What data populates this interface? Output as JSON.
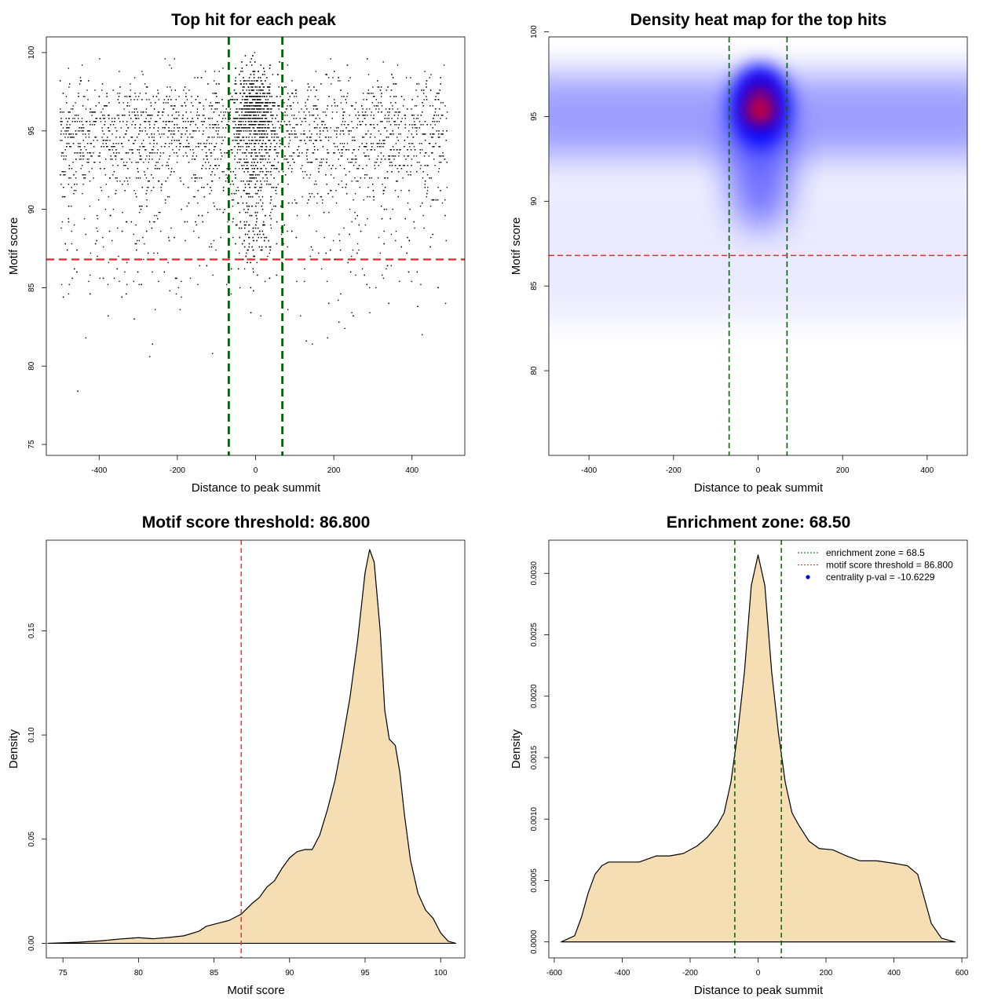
{
  "colors": {
    "enrichment": "#006400",
    "threshold": "#e03030",
    "fill": "#f5deb3",
    "point": "#000000",
    "heat_low": "#ffffff",
    "heat_mid": "#0000ff",
    "heat_high": "#ff0000"
  },
  "chart_data": [
    {
      "type": "scatter",
      "title": "Top hit for each peak",
      "xlabel": "Distance to peak summit",
      "ylabel": "Motif score",
      "xlim": [
        -535,
        535
      ],
      "ylim": [
        74.3,
        101.0
      ],
      "xticks": [
        -400,
        -200,
        0,
        200,
        400
      ],
      "yticks": [
        75,
        80,
        85,
        90,
        95,
        100
      ],
      "points_description": "about 6000 points spread over x -500..500, concentrated at y 93-97 and near x 0",
      "vlines": [
        -68.5,
        68.5
      ],
      "hline": 86.8
    },
    {
      "type": "heatmap",
      "title": "Density heat map for the top hits",
      "xlabel": "Distance to peak summit",
      "ylabel": "Motif score",
      "xlim": [
        -495,
        495
      ],
      "ylim": [
        75.0,
        99.7
      ],
      "xticks": [
        -400,
        -200,
        0,
        200,
        400
      ],
      "yticks": [
        80,
        85,
        90,
        95,
        100
      ],
      "hotspot": {
        "x": 5,
        "y": 95.3
      },
      "vlines": [
        -68.5,
        68.5
      ],
      "hline": 86.8
    },
    {
      "type": "area",
      "title": "Motif score threshold: 86.800",
      "xlabel": "Motif score",
      "ylabel": "Density",
      "xlim": [
        73.9,
        101.6
      ],
      "ylim": [
        -0.007,
        0.1935
      ],
      "xticks": [
        75,
        80,
        85,
        90,
        95,
        100
      ],
      "yticks": [
        0.0,
        0.05,
        0.1,
        0.15
      ],
      "ytick_labels": [
        "0.00",
        "0.05",
        "0.10",
        "0.15"
      ],
      "x": [
        74.0,
        76.0,
        77.5,
        79.0,
        80.0,
        81.0,
        82.0,
        83.0,
        84.0,
        84.5,
        85.2,
        86.0,
        86.8,
        87.5,
        88.0,
        88.5,
        89.0,
        89.5,
        90.0,
        90.5,
        91.0,
        91.5,
        92.0,
        92.5,
        93.0,
        93.5,
        94.0,
        94.5,
        95.0,
        95.3,
        95.6,
        96.0,
        96.3,
        96.6,
        97.0,
        97.3,
        97.6,
        98.0,
        98.5,
        99.0,
        99.5,
        100.0,
        100.5,
        101.0
      ],
      "y": [
        0.0,
        0.0005,
        0.0012,
        0.0022,
        0.0027,
        0.0022,
        0.0028,
        0.0036,
        0.0058,
        0.0082,
        0.0095,
        0.011,
        0.014,
        0.019,
        0.022,
        0.027,
        0.03,
        0.036,
        0.041,
        0.044,
        0.045,
        0.045,
        0.052,
        0.064,
        0.078,
        0.097,
        0.118,
        0.145,
        0.178,
        0.189,
        0.183,
        0.15,
        0.112,
        0.098,
        0.095,
        0.082,
        0.062,
        0.04,
        0.024,
        0.016,
        0.012,
        0.005,
        0.001,
        0.0
      ],
      "vline": 86.8
    },
    {
      "type": "area",
      "title": "Enrichment zone: 68.50",
      "xlabel": "Distance to peak summit",
      "ylabel": "Density",
      "xlim": [
        -616,
        616
      ],
      "ylim": [
        -0.00013,
        0.00327
      ],
      "xticks": [
        -600,
        -400,
        -200,
        0,
        200,
        400,
        600
      ],
      "yticks": [
        0.0,
        0.0005,
        0.001,
        0.0015,
        0.002,
        0.0025,
        0.003
      ],
      "ytick_labels": [
        "0.0000",
        "0.0005",
        "0.0010",
        "0.0015",
        "0.0020",
        "0.0025",
        "0.0030"
      ],
      "x": [
        -580,
        -540,
        -520,
        -500,
        -480,
        -460,
        -440,
        -400,
        -350,
        -300,
        -260,
        -220,
        -180,
        -150,
        -120,
        -100,
        -80,
        -60,
        -40,
        -20,
        0,
        20,
        40,
        60,
        80,
        100,
        120,
        150,
        180,
        220,
        260,
        300,
        350,
        400,
        440,
        470,
        490,
        510,
        540,
        580
      ],
      "y": [
        0.0,
        5e-05,
        0.0002,
        0.0004,
        0.00055,
        0.00062,
        0.00065,
        0.00065,
        0.00065,
        0.0007,
        0.0007,
        0.00072,
        0.00078,
        0.00085,
        0.00095,
        0.00105,
        0.0013,
        0.0017,
        0.0022,
        0.0029,
        0.00315,
        0.0029,
        0.0022,
        0.0017,
        0.0013,
        0.00105,
        0.00095,
        0.00082,
        0.00076,
        0.00075,
        0.0007,
        0.00066,
        0.00066,
        0.00064,
        0.00062,
        0.00055,
        0.00035,
        0.00015,
        3e-05,
        0.0
      ],
      "vlines": [
        -68.5,
        68.5
      ],
      "legend": {
        "position": "top-right",
        "entries": [
          {
            "label": "enrichment zone = 68.5",
            "color": "#006400",
            "kind": "line-dotted"
          },
          {
            "label": "motif score threshold = 86.800",
            "color": "#e03030",
            "kind": "line-dotted"
          },
          {
            "label": "centrality p-val = -10.6229",
            "color": "#0000ff",
            "kind": "point"
          }
        ]
      }
    }
  ]
}
